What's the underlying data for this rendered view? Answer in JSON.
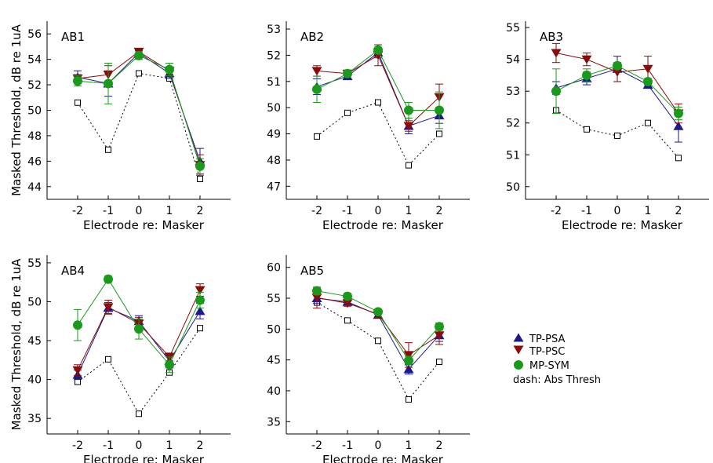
{
  "chart_data": {
    "type": "line",
    "series_meta": [
      {
        "key": "tp_psa",
        "name": "TP-PSA",
        "color": "#1a1a8c",
        "marker": "triangle-up"
      },
      {
        "key": "tp_psc",
        "name": "TP-PSC",
        "color": "#8b0a0a",
        "marker": "triangle-down"
      },
      {
        "key": "mp_sym",
        "name": "MP-SYM",
        "color": "#1a9a1a",
        "marker": "circle"
      },
      {
        "key": "abs",
        "name": "",
        "color": "#000000",
        "marker": "square-open",
        "dashed": true
      }
    ],
    "legend": {
      "placement": "right",
      "entries": [
        "TP-PSA",
        "TP-PSC",
        "MP-SYM"
      ],
      "note": "dash: Abs Thresh"
    },
    "charts": [
      {
        "title": "AB1",
        "xlabel": "Electrode re: Masker",
        "ylabel": "Masked Threshold, dB re 1uA",
        "x": [
          -2,
          -1,
          0,
          1,
          2
        ],
        "xlim": [
          -3,
          3
        ],
        "ylim": [
          43,
          57
        ],
        "yticks": [
          44,
          46,
          48,
          50,
          52,
          54,
          56
        ],
        "grid": false,
        "series": {
          "tp_psa": {
            "values": [
              52.6,
              52.1,
              54.5,
              52.9,
              46.0
            ],
            "err": [
              0.5,
              1.0,
              0.2,
              0.4,
              1.0
            ]
          },
          "tp_psc": {
            "values": [
              52.5,
              52.8,
              54.6,
              53.1,
              45.7
            ],
            "err": [
              0.3,
              0.7,
              0.2,
              0.3,
              0.8
            ]
          },
          "mp_sym": {
            "values": [
              52.3,
              52.1,
              54.3,
              53.2,
              45.6
            ],
            "err": [
              0.4,
              1.6,
              0.3,
              0.5,
              0.6
            ]
          },
          "abs": {
            "values": [
              50.6,
              46.9,
              52.9,
              52.5,
              44.6
            ]
          }
        }
      },
      {
        "title": "AB2",
        "xlabel": "Electrode re: Masker",
        "ylabel": "",
        "x": [
          -2,
          -1,
          0,
          1,
          2
        ],
        "xlim": [
          -3,
          3
        ],
        "ylim": [
          46.5,
          53.3
        ],
        "yticks": [
          47,
          48,
          49,
          50,
          51,
          52,
          53
        ],
        "grid": false,
        "series": {
          "tp_psa": {
            "values": [
              50.8,
              51.2,
              52.1,
              49.3,
              49.7
            ],
            "err": [
              0.3,
              0.1,
              0.2,
              0.3,
              0.3
            ]
          },
          "tp_psc": {
            "values": [
              51.4,
              51.3,
              52.0,
              49.3,
              50.4
            ],
            "err": [
              0.2,
              0.1,
              0.4,
              0.2,
              0.5
            ]
          },
          "mp_sym": {
            "values": [
              50.7,
              51.3,
              52.2,
              49.9,
              49.9
            ],
            "err": [
              0.5,
              0.1,
              0.1,
              0.3,
              0.7
            ]
          },
          "abs": {
            "values": [
              48.9,
              49.8,
              50.2,
              47.8,
              49.0
            ]
          }
        }
      },
      {
        "title": "AB3",
        "xlabel": "Electrode re: Masker",
        "ylabel": "",
        "x": [
          -2,
          -1,
          0,
          1,
          2
        ],
        "xlim": [
          -3,
          3
        ],
        "ylim": [
          49.6,
          55.2
        ],
        "yticks": [
          50,
          51,
          52,
          53,
          54,
          55
        ],
        "grid": false,
        "series": {
          "tp_psa": {
            "values": [
              53.1,
              53.4,
              53.7,
              53.2,
              51.9
            ],
            "err": [
              0.2,
              0.2,
              0.4,
              0.1,
              0.5
            ]
          },
          "tp_psc": {
            "values": [
              54.2,
              54.0,
              53.6,
              53.7,
              52.3
            ],
            "err": [
              0.3,
              0.2,
              0.3,
              0.4,
              0.3
            ]
          },
          "mp_sym": {
            "values": [
              53.0,
              53.5,
              53.8,
              53.3,
              52.3
            ],
            "err": [
              0.7,
              0.2,
              0.1,
              0.1,
              0.2
            ]
          },
          "abs": {
            "values": [
              52.4,
              51.8,
              51.6,
              52.0,
              50.9
            ]
          }
        }
      },
      {
        "title": "AB4",
        "xlabel": "Electrode re: Masker",
        "ylabel": "Masked Threshold, dB re 1uA",
        "x": [
          -2,
          -1,
          0,
          1,
          2
        ],
        "xlim": [
          -3,
          3
        ],
        "ylim": [
          33,
          56
        ],
        "yticks": [
          35,
          40,
          45,
          50,
          55
        ],
        "grid": false,
        "series": {
          "tp_psa": {
            "values": [
              40.6,
              49.2,
              47.5,
              42.4,
              48.8
            ],
            "err": [
              0.6,
              0.7,
              0.7,
              0.9,
              1.0
            ]
          },
          "tp_psc": {
            "values": [
              41.2,
              49.3,
              47.2,
              42.9,
              51.5
            ],
            "err": [
              0.7,
              0.9,
              0.8,
              0.5,
              0.8
            ]
          },
          "mp_sym": {
            "values": [
              47.0,
              52.9,
              46.5,
              41.9,
              50.2
            ],
            "err": [
              2.0,
              0.4,
              1.3,
              1.0,
              1.0
            ]
          },
          "abs": {
            "values": [
              39.7,
              42.6,
              35.6,
              40.9,
              46.6
            ]
          }
        }
      },
      {
        "title": "AB5",
        "xlabel": "Electrode re: Masker",
        "ylabel": "",
        "x": [
          -2,
          -1,
          0,
          1,
          2
        ],
        "xlim": [
          -3,
          3
        ],
        "ylim": [
          33,
          62
        ],
        "yticks": [
          35,
          40,
          45,
          50,
          55,
          60
        ],
        "grid": false,
        "series": {
          "tp_psa": {
            "values": [
              55.0,
              54.4,
              52.3,
              43.5,
              49.0
            ],
            "err": [
              0.8,
              0.5,
              0.5,
              0.8,
              1.0
            ]
          },
          "tp_psc": {
            "values": [
              55.1,
              54.2,
              52.4,
              45.8,
              49.0
            ],
            "err": [
              1.7,
              0.5,
              0.5,
              2.0,
              1.5
            ]
          },
          "mp_sym": {
            "values": [
              56.2,
              55.3,
              52.8,
              44.9,
              50.4
            ],
            "err": [
              0.6,
              0.5,
              0.4,
              0.7,
              0.6
            ]
          },
          "abs": {
            "values": [
              54.3,
              51.4,
              48.1,
              38.6,
              44.7
            ]
          }
        }
      }
    ]
  }
}
